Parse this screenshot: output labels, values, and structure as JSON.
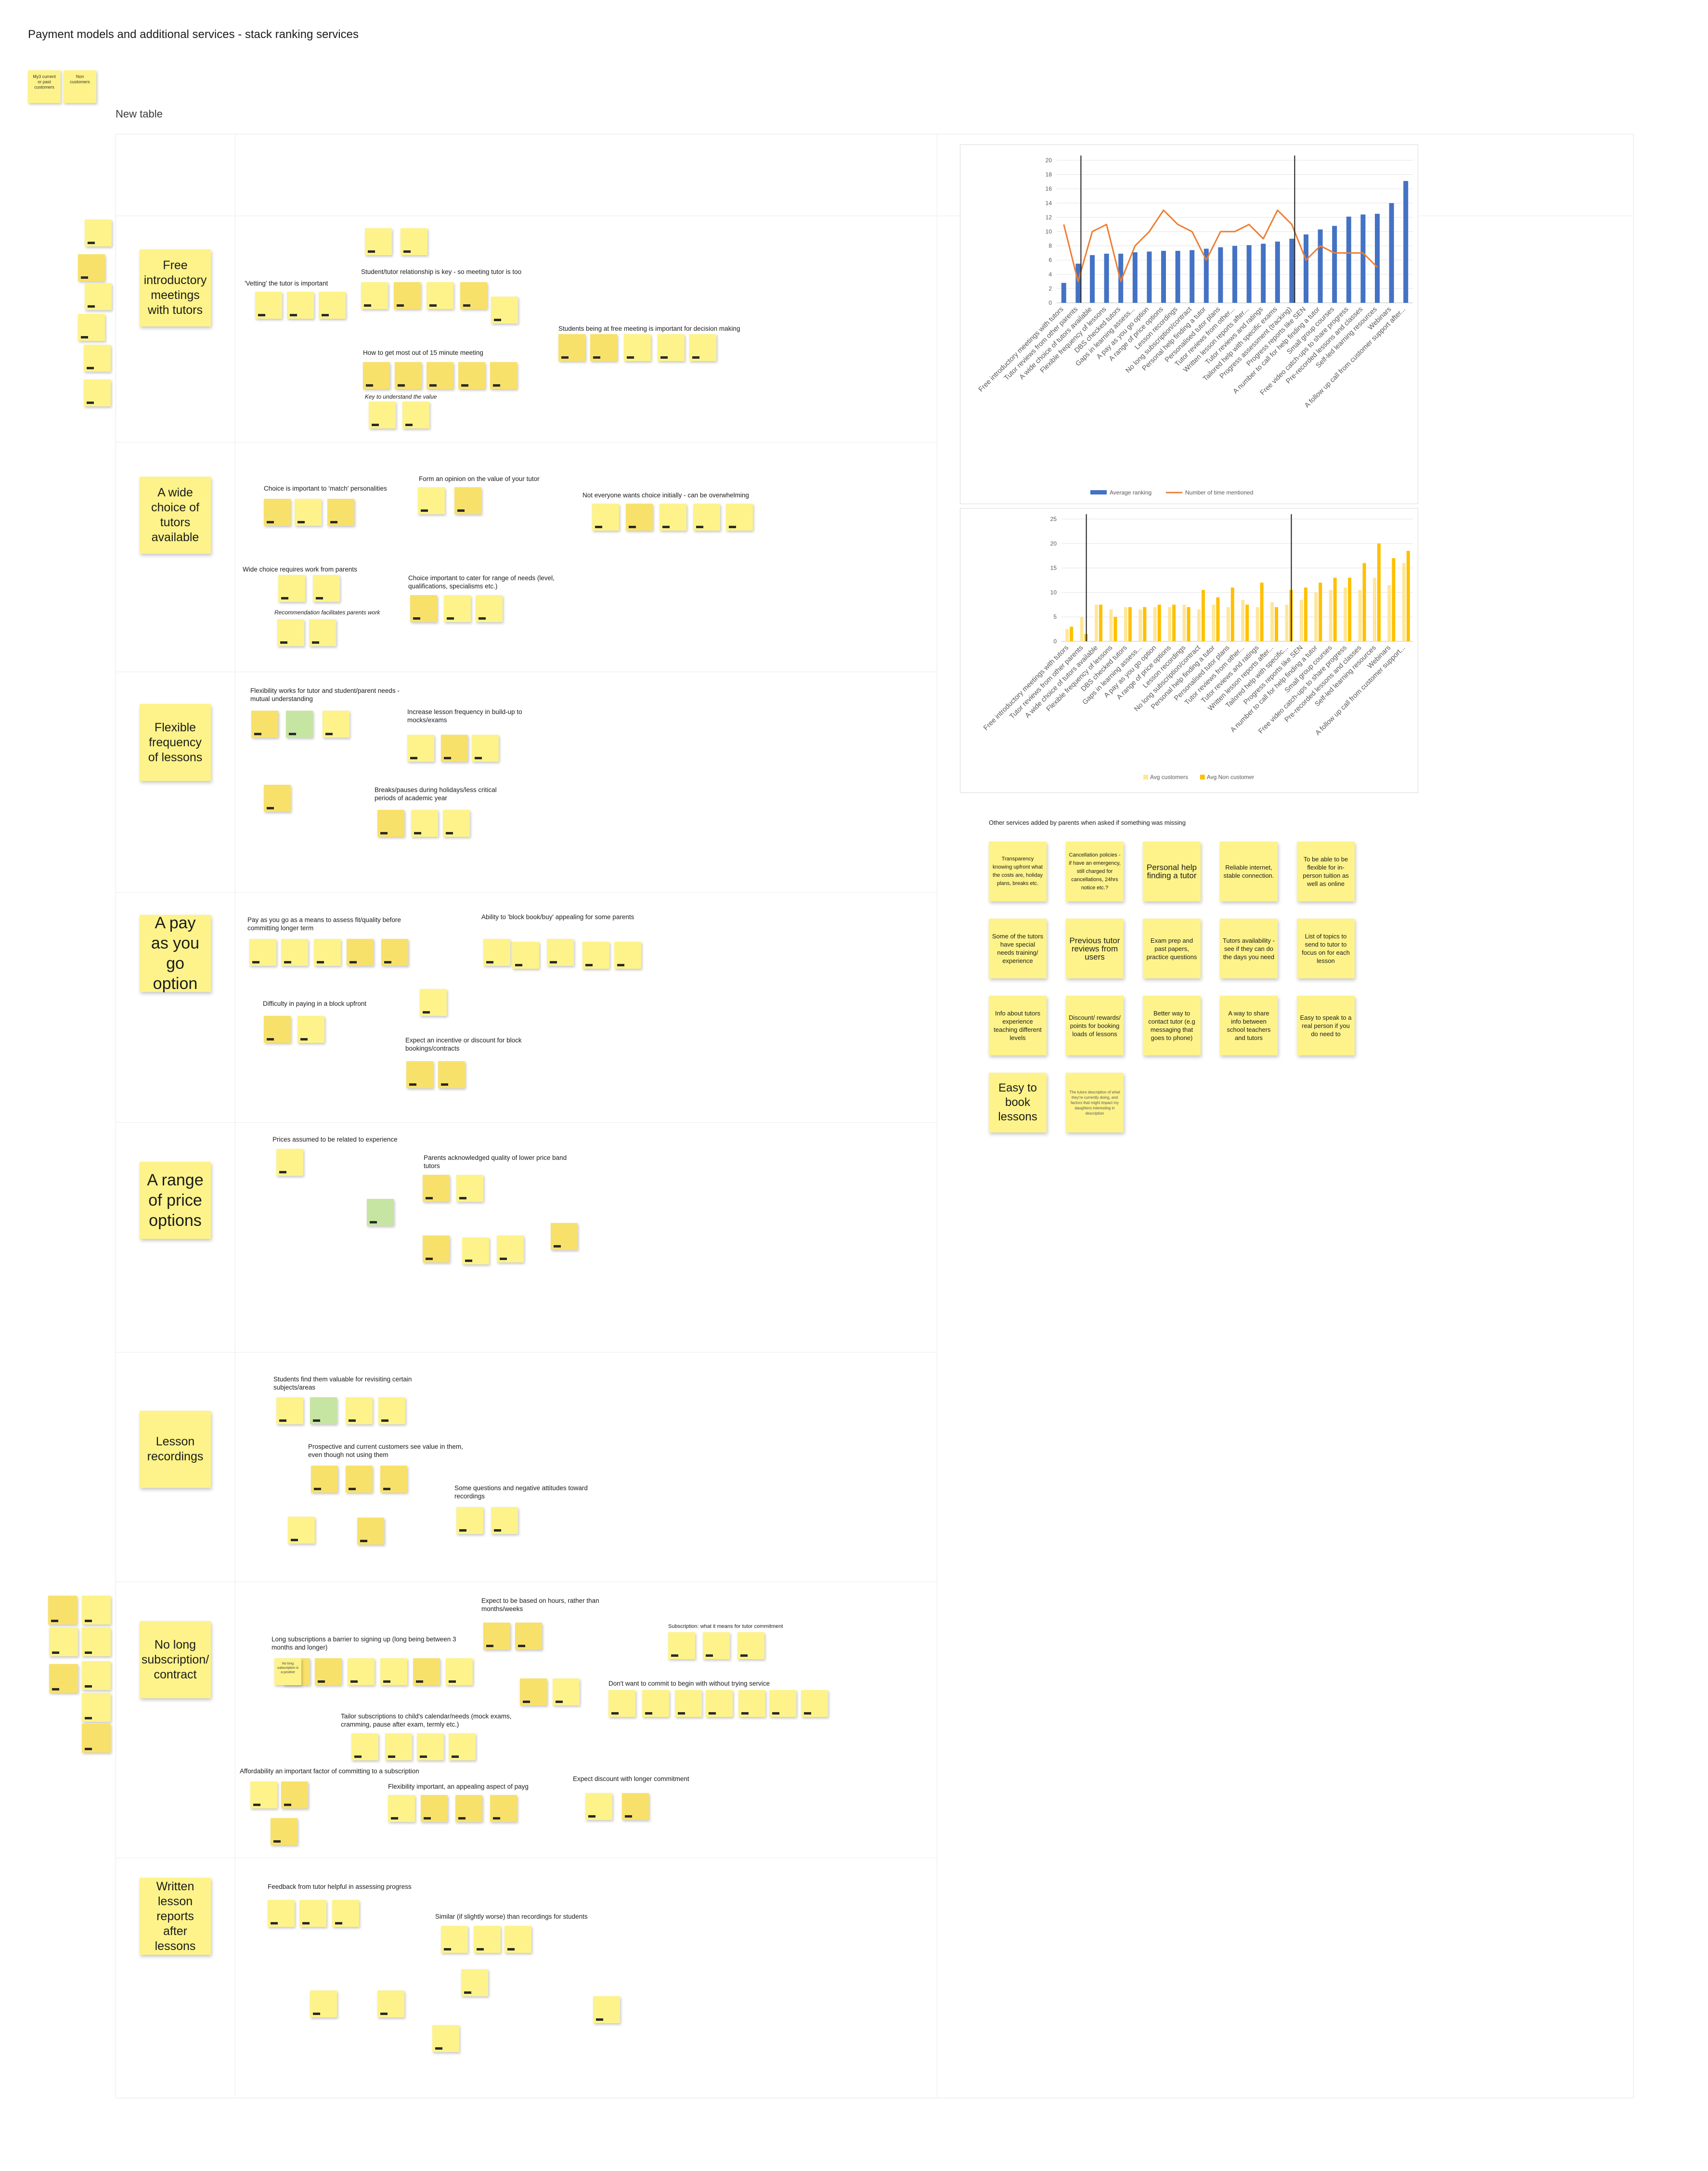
{
  "board_title": "Payment models and additional services - stack ranking services",
  "key_notes": [
    "My3 current or past customers",
    "Non customers"
  ],
  "table_title": "New table",
  "rows": [
    {
      "category": "Free introductory meetings with tutors",
      "labels": [
        "'Vetting' the tutor is important",
        "Student/tutor relationship is key - so meeting tutor is too",
        "Students being at free meeting is important for decision making",
        "How to get most out of 15 minute meeting",
        "Key to understand the value"
      ]
    },
    {
      "category": "A wide choice of tutors available",
      "labels": [
        "Choice is important to 'match' personalities",
        "Form an opinion on the value of your tutor",
        "Not everyone wants choice initially - can be overwhelming",
        "Wide choice requires work from parents",
        "Recommendation facilitates parents work",
        "Choice important to cater for range of needs (level, qualifications, specialisms etc.)"
      ]
    },
    {
      "category": "Flexible frequency of lessons",
      "labels": [
        "Flexibility works for tutor and student/parent needs - mutual understanding",
        "Increase lesson frequency in build-up to mocks/exams",
        "Breaks/pauses during holidays/less critical periods of academic year"
      ]
    },
    {
      "category": "A pay as you go option",
      "labels": [
        "Pay as you go as a means to assess fit/quality before committing longer term",
        "Ability to 'block book/buy' appealing for some parents",
        "Difficulty in paying in a block upfront",
        "Expect an incentive or discount for block bookings/contracts"
      ]
    },
    {
      "category": "A range of price options",
      "labels": [
        "Prices assumed to be related to experience",
        "Parents acknowledged quality of lower price band tutors"
      ]
    },
    {
      "category": "Lesson recordings",
      "labels": [
        "Students find them valuable for revisiting certain subjects/areas",
        "Prospective and current customers see value in them, even though not using them",
        "Some questions and negative attitudes toward recordings"
      ]
    },
    {
      "category": "No long subscription/ contract",
      "labels": [
        "Expect to be based on hours, rather than months/weeks",
        "Subscription: what it means for tutor commitment",
        "Long subscriptions a barrier to signing up (long being between 3 months and longer)",
        "Don't want to commit to begin with without trying service",
        "Tailor subscriptions to child's calendar/needs (mock exams, cramming, pause after exam, termly etc.)",
        "Affordability an important factor of committing to a subscription",
        "Flexibility important, an appealing aspect of payg",
        "Expect discount with longer commitment"
      ]
    },
    {
      "category": "Written lesson reports after lessons",
      "labels": [
        "Feedback from tutor helpful in assessing progress",
        "Similar (if slightly worse) than recordings for students"
      ]
    }
  ],
  "inline_notes": {
    "no_long_sub": "No long subscription is a positive"
  },
  "other_services": {
    "heading": "Other services added by parents when asked if something was missing",
    "items": [
      "Transparency knowing upfront what the costs are, holiday plans, breaks etc.",
      "Cancellation policies - if have an emergency, still charged for cancellations, 24hrs notice etc.?",
      "Personal help finding a tutor",
      "Reliable internet, stable connection.",
      "To be able to be flexible for in-person tuition as well as online",
      "Some of the tutors have special needs training/ experience",
      "Previous tutor reviews from users",
      "Exam prep and past papers, practice questions",
      "Tutors availability - see if they can do the days you need",
      "List of topics to send to tutor to focus on for each lesson",
      "Info about tutors experience teaching different levels",
      "Discount/ rewards/ points for booking loads of lessons",
      "Better way to contact tutor (e.g messaging that goes to phone)",
      "A way to share info between school teachers and tutors",
      "Easy to speak to a real person if you do need to",
      "Easy to book lessons",
      "The tutors description of what they're currently doing, and factors that might impact my daughters interesting in description"
    ]
  },
  "chart_data": [
    {
      "type": "bar",
      "title": "",
      "overlay": "line",
      "categories": [
        "Free introductory meetings with tutors",
        "Tutor reviews from other parents",
        "A wide choice of tutors available",
        "Flexible frequency of lessons",
        "DBS checked tutors",
        "Gaps in learning assess...",
        "A pay as you go option",
        "A range of price options",
        "Lesson recordings",
        "No long subscription/contract",
        "Personal help finding a tutor",
        "Personalised tutor plans",
        "Tutor reviews from other...",
        "Written lesson reports after...",
        "Tutor reviews and ratings",
        "Tailored help with specific exams",
        "Progress assessment (tracking)",
        "Progress reports like SEN",
        "A number to call for help finding a tutor",
        "Small group courses",
        "Free video catch-ups to share progress",
        "Pre-recorded lessons and classes",
        "Self-led learning resources",
        "Webinars",
        "A follow up call from customer support after..."
      ],
      "series": [
        {
          "name": "Average ranking",
          "kind": "bar",
          "values": [
            2.8,
            5.5,
            6.7,
            6.9,
            6.9,
            7.1,
            7.2,
            7.3,
            7.3,
            7.4,
            7.6,
            7.8,
            8.0,
            8.1,
            8.3,
            8.6,
            9.0,
            9.6,
            10.3,
            10.8,
            12.1,
            12.4,
            12.5,
            14.0,
            17.1
          ]
        },
        {
          "name": "Number of time mentioned",
          "kind": "line",
          "values": [
            11,
            3,
            10,
            11,
            3,
            8,
            10,
            13,
            11,
            10,
            6,
            10,
            10,
            11,
            9,
            13,
            11,
            6,
            8,
            7,
            7,
            7,
            5,
            0,
            0
          ]
        }
      ],
      "ylim": [
        0,
        20
      ],
      "yticks": [
        0,
        2,
        4,
        6,
        8,
        10,
        12,
        14,
        16,
        18,
        20
      ],
      "markers": [
        1,
        16
      ],
      "legend": "bottom",
      "legend_entries": [
        "Average ranking",
        "Number of time mentioned"
      ]
    },
    {
      "type": "bar",
      "title": "",
      "categories": [
        "Free introductory meetings with tutors",
        "Tutor reviews from other parents",
        "A wide choice of tutors available",
        "Flexible frequency of lessons",
        "DBS checked tutors",
        "Gaps in learning assess...",
        "A pay as you go option",
        "A range of price options",
        "Lesson recordings",
        "No long subscription/contract",
        "Personal help finding a tutor",
        "Personalised tutor plans",
        "Tutor reviews from other...",
        "Tutor reviews and ratings",
        "Written lesson reports after...",
        "Tailored help with specific...",
        "Progress reports like SEN",
        "A number to call for help finding a tutor",
        "Small group courses",
        "Free video catch-ups to share progress",
        "Pre-recorded lessons and classes",
        "Self-led learning resources",
        "Webinars",
        "A follow up call from customer support..."
      ],
      "series": [
        {
          "name": "Avg customers",
          "values": [
            2.5,
            5.0,
            7.5,
            6.5,
            7.0,
            6.5,
            7.0,
            7.0,
            7.5,
            6.5,
            7.5,
            7.0,
            8.5,
            7.0,
            8.0,
            7.5,
            8.5,
            10.0,
            10.5,
            11.0,
            10.5,
            13.0,
            11.5,
            16.0
          ]
        },
        {
          "name": "Avg Non customer",
          "values": [
            3.0,
            1.5,
            7.5,
            5.0,
            7.0,
            7.0,
            7.5,
            7.5,
            7.0,
            10.5,
            9.0,
            11.0,
            7.5,
            12.0,
            7.0,
            10.5,
            11.0,
            12.0,
            13.0,
            13.0,
            16.0,
            20.0,
            17.0,
            18.5
          ]
        }
      ],
      "ylim": [
        0,
        25
      ],
      "yticks": [
        0,
        5,
        10,
        15,
        20,
        25
      ],
      "markers": [
        1,
        15
      ],
      "legend": "bottom",
      "legend_entries": [
        "Avg customers",
        "Avg Non customer"
      ]
    }
  ],
  "colors": {
    "note": "#fdf38a",
    "note_alt": "#f8e16a",
    "note_green": "#c6e5a3",
    "bar_blue": "#4472c4",
    "line_orange": "#ed7d31",
    "bar_gold": "#ffc000",
    "bar_light": "#ffe699"
  }
}
